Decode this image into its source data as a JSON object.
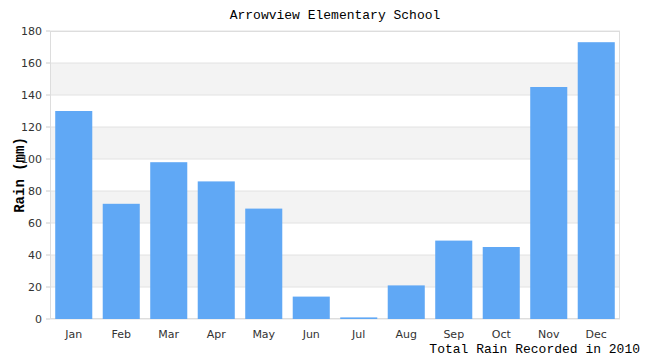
{
  "chart_data": {
    "type": "bar",
    "title": "Arrowview Elementary School",
    "ylabel": "Rain (mm)",
    "xlabel": "Total Rain Recorded in 2010",
    "categories": [
      "Jan",
      "Feb",
      "Mar",
      "Apr",
      "May",
      "Jun",
      "Jul",
      "Aug",
      "Sep",
      "Oct",
      "Nov",
      "Dec"
    ],
    "values": [
      130,
      72,
      98,
      86,
      69,
      14,
      1,
      21,
      49,
      45,
      145,
      173
    ],
    "color": "#60a8f5",
    "ylim": [
      0,
      180
    ],
    "yticks": [
      0,
      20,
      40,
      60,
      80,
      100,
      120,
      140,
      160,
      180
    ],
    "grid": true
  }
}
